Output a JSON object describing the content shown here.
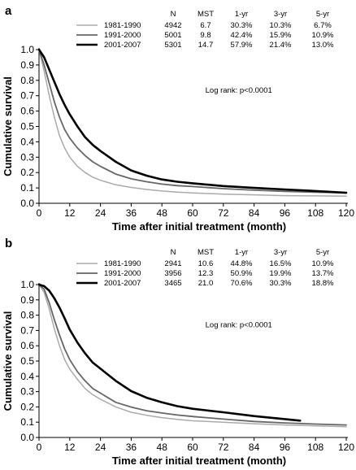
{
  "chart_data": [
    {
      "type": "line",
      "panel_label": "a",
      "ylabel": "Cumulative survival",
      "xlabel": "Time after initial treatment (month)",
      "xlim": [
        0,
        120
      ],
      "ylim": [
        0,
        1.0
      ],
      "xticks": [
        "0",
        "12",
        "24",
        "36",
        "48",
        "60",
        "72",
        "84",
        "96",
        "108",
        "120"
      ],
      "yticks": [
        "0.0",
        "0.1",
        "0.2",
        "0.3",
        "0.4",
        "0.5",
        "0.6",
        "0.7",
        "0.8",
        "0.9",
        "1.0"
      ],
      "annotation": "Log rank: p<0.0001",
      "table_headers": [
        "N",
        "MST",
        "1-yr",
        "3-yr",
        "5-yr"
      ],
      "series": [
        {
          "name": "1981-1990",
          "color": "#aaaaaa",
          "stroke": 1.5,
          "stats": [
            "4942",
            "6.7",
            "30.3%",
            "10.3%",
            "6.7%"
          ],
          "x": [
            0,
            2,
            4,
            6,
            8,
            10,
            12,
            15,
            18,
            21,
            24,
            30,
            36,
            42,
            48,
            54,
            60,
            72,
            84,
            96,
            108,
            120
          ],
          "y": [
            1.0,
            0.86,
            0.7,
            0.56,
            0.44,
            0.36,
            0.3,
            0.24,
            0.2,
            0.17,
            0.15,
            0.12,
            0.103,
            0.09,
            0.08,
            0.073,
            0.067,
            0.06,
            0.055,
            0.05,
            0.048,
            0.046
          ]
        },
        {
          "name": "1991-2000",
          "color": "#666666",
          "stroke": 1.8,
          "stats": [
            "5001",
            "9.8",
            "42.4%",
            "15.9%",
            "10.9%"
          ],
          "x": [
            0,
            2,
            4,
            6,
            8,
            10,
            12,
            15,
            18,
            21,
            24,
            30,
            36,
            42,
            48,
            54,
            60,
            72,
            84,
            96,
            108,
            120
          ],
          "y": [
            1.0,
            0.9,
            0.78,
            0.66,
            0.56,
            0.48,
            0.424,
            0.36,
            0.31,
            0.27,
            0.24,
            0.19,
            0.159,
            0.14,
            0.125,
            0.115,
            0.109,
            0.095,
            0.085,
            0.078,
            0.072,
            0.068
          ]
        },
        {
          "name": "2001-2007",
          "color": "#000000",
          "stroke": 2.6,
          "stats": [
            "5301",
            "14.7",
            "57.9%",
            "21.4%",
            "13.0%"
          ],
          "x": [
            0,
            2,
            4,
            6,
            8,
            10,
            12,
            15,
            18,
            21,
            24,
            30,
            36,
            42,
            48,
            54,
            60,
            72,
            84,
            96,
            108,
            120
          ],
          "y": [
            1.0,
            0.95,
            0.87,
            0.79,
            0.71,
            0.64,
            0.579,
            0.5,
            0.43,
            0.38,
            0.34,
            0.27,
            0.214,
            0.18,
            0.155,
            0.14,
            0.13,
            0.112,
            0.1,
            0.09,
            0.08,
            0.068
          ]
        }
      ]
    },
    {
      "type": "line",
      "panel_label": "b",
      "ylabel": "Cumulative survival",
      "xlabel": "Time after initial treatment (month)",
      "xlim": [
        0,
        120
      ],
      "ylim": [
        0,
        1.0
      ],
      "xticks": [
        "0",
        "12",
        "24",
        "36",
        "48",
        "60",
        "72",
        "84",
        "96",
        "108",
        "120"
      ],
      "yticks": [
        "0.0",
        "0.1",
        "0.2",
        "0.3",
        "0.4",
        "0.5",
        "0.6",
        "0.7",
        "0.8",
        "0.9",
        "1.0"
      ],
      "annotation": "Log rank: p<0.0001",
      "table_headers": [
        "N",
        "MST",
        "1-yr",
        "3-yr",
        "5-yr"
      ],
      "series": [
        {
          "name": "1981-1990",
          "color": "#aaaaaa",
          "stroke": 1.5,
          "stats": [
            "2941",
            "10.6",
            "44.8%",
            "16.5%",
            "10.9%"
          ],
          "x": [
            0,
            2,
            4,
            6,
            8,
            10,
            12,
            15,
            18,
            21,
            24,
            30,
            36,
            42,
            48,
            54,
            60,
            72,
            84,
            96,
            108,
            120
          ],
          "y": [
            1.0,
            0.95,
            0.84,
            0.71,
            0.6,
            0.51,
            0.448,
            0.38,
            0.32,
            0.28,
            0.25,
            0.2,
            0.165,
            0.145,
            0.13,
            0.118,
            0.109,
            0.1,
            0.09,
            0.082,
            0.076,
            0.07
          ]
        },
        {
          "name": "1991-2000",
          "color": "#666666",
          "stroke": 1.8,
          "stats": [
            "3956",
            "12.3",
            "50.9%",
            "19.9%",
            "13.7%"
          ],
          "x": [
            0,
            2,
            4,
            6,
            8,
            10,
            12,
            15,
            18,
            21,
            24,
            30,
            36,
            42,
            48,
            54,
            60,
            72,
            84,
            96,
            108,
            120
          ],
          "y": [
            1.0,
            0.97,
            0.88,
            0.77,
            0.67,
            0.58,
            0.509,
            0.43,
            0.37,
            0.32,
            0.29,
            0.23,
            0.199,
            0.175,
            0.16,
            0.147,
            0.137,
            0.12,
            0.105,
            0.095,
            0.088,
            0.082
          ]
        },
        {
          "name": "2001-2007",
          "color": "#000000",
          "stroke": 2.6,
          "stats": [
            "3465",
            "21.0",
            "70.6%",
            "30.3%",
            "18.8%"
          ],
          "x": [
            0,
            2,
            4,
            6,
            8,
            10,
            12,
            15,
            18,
            21,
            24,
            30,
            36,
            42,
            48,
            54,
            60,
            72,
            84,
            96,
            102
          ],
          "y": [
            1.0,
            0.99,
            0.96,
            0.91,
            0.85,
            0.78,
            0.706,
            0.62,
            0.55,
            0.49,
            0.45,
            0.37,
            0.303,
            0.26,
            0.23,
            0.205,
            0.188,
            0.165,
            0.14,
            0.12,
            0.11
          ]
        }
      ]
    }
  ]
}
